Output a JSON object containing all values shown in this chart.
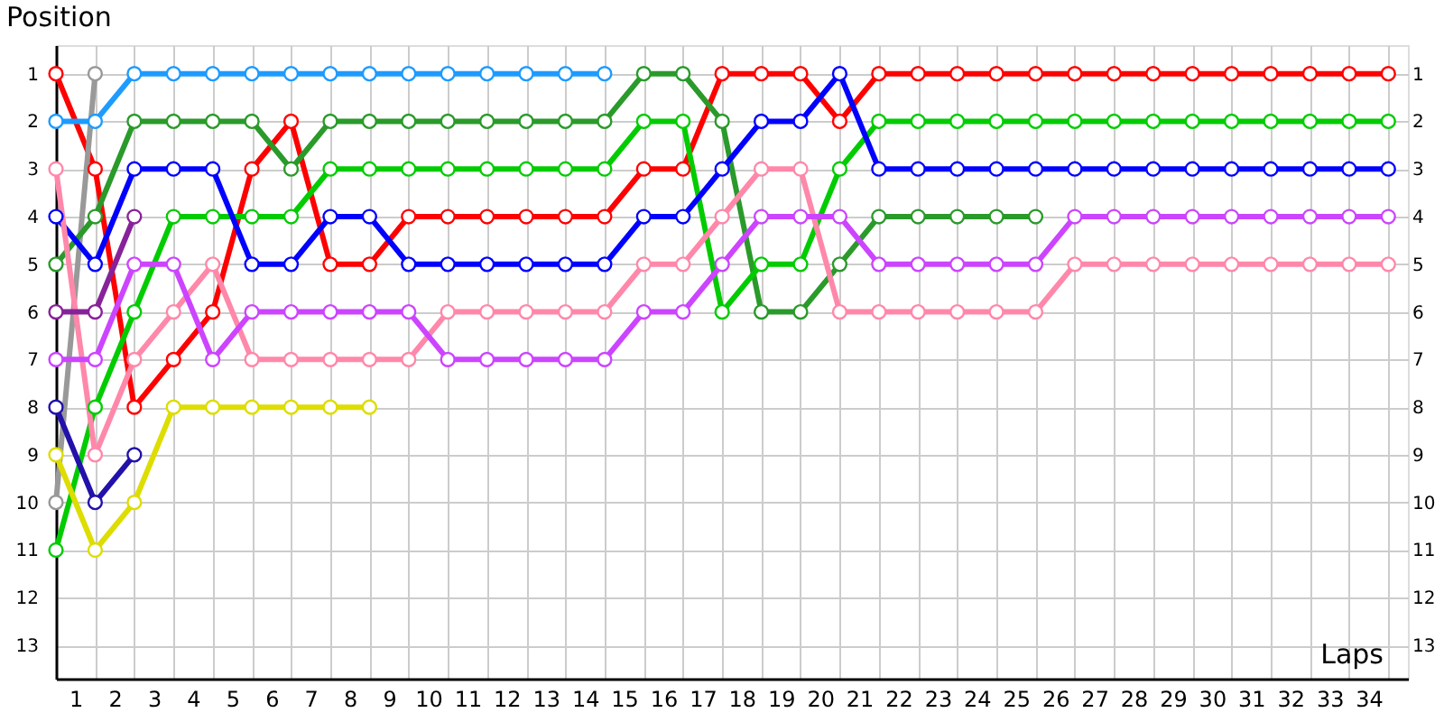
{
  "chart_data": {
    "type": "line",
    "xlabel": "Laps",
    "ylabel": "Position",
    "x": [
      0,
      1,
      2,
      3,
      4,
      5,
      6,
      7,
      8,
      9,
      10,
      11,
      12,
      13,
      14,
      15,
      16,
      17,
      18,
      19,
      20,
      21,
      22,
      23,
      24,
      25,
      26,
      27,
      28,
      29,
      30,
      31,
      32,
      33,
      34
    ],
    "xlim": [
      0,
      34.5
    ],
    "xticks": [
      {
        "value": 0,
        "label": null
      },
      {
        "value": 1,
        "label": null
      },
      {
        "value": 2,
        "label": null
      },
      {
        "value": 3,
        "label": null
      },
      {
        "value": 4,
        "label": null
      },
      {
        "value": 5,
        "label": null
      },
      {
        "value": 6,
        "label": null
      },
      {
        "value": 7,
        "label": null
      },
      {
        "value": 8,
        "label": null
      },
      {
        "value": 9,
        "label": null
      },
      {
        "value": 10,
        "label": null
      },
      {
        "value": 11,
        "label": null
      },
      {
        "value": 12,
        "label": null
      },
      {
        "value": 13,
        "label": null
      },
      {
        "value": 14,
        "label": null
      },
      {
        "value": 15,
        "label": null
      },
      {
        "value": 16,
        "label": null
      },
      {
        "value": 17,
        "label": null
      },
      {
        "value": 18,
        "label": null
      },
      {
        "value": 19,
        "label": null
      },
      {
        "value": 20,
        "label": null
      },
      {
        "value": 21,
        "label": null
      },
      {
        "value": 22,
        "label": null
      },
      {
        "value": 23,
        "label": null
      },
      {
        "value": 24,
        "label": null
      },
      {
        "value": 25,
        "label": null
      },
      {
        "value": 26,
        "label": null
      },
      {
        "value": 27,
        "label": null
      },
      {
        "value": 28,
        "label": null
      },
      {
        "value": 29,
        "label": null
      },
      {
        "value": 30,
        "label": null
      },
      {
        "value": 31,
        "label": null
      },
      {
        "value": 32,
        "label": null
      },
      {
        "value": 33,
        "label": null
      },
      {
        "value": 34,
        "label": null
      },
      {
        "value": 0.5,
        "label": "1"
      },
      {
        "value": 1.5,
        "label": "2"
      },
      {
        "value": 2.5,
        "label": "3"
      },
      {
        "value": 3.5,
        "label": "4"
      },
      {
        "value": 4.5,
        "label": "5"
      },
      {
        "value": 5.5,
        "label": "6"
      },
      {
        "value": 6.5,
        "label": "7"
      },
      {
        "value": 7.5,
        "label": "8"
      },
      {
        "value": 8.5,
        "label": "9"
      },
      {
        "value": 9.5,
        "label": "10"
      },
      {
        "value": 10.5,
        "label": "11"
      },
      {
        "value": 11.5,
        "label": "12"
      },
      {
        "value": 12.5,
        "label": "13"
      },
      {
        "value": 13.5,
        "label": "14"
      },
      {
        "value": 14.5,
        "label": "15"
      },
      {
        "value": 15.5,
        "label": "16"
      },
      {
        "value": 16.5,
        "label": "17"
      },
      {
        "value": 17.5,
        "label": "18"
      },
      {
        "value": 18.5,
        "label": "19"
      },
      {
        "value": 19.5,
        "label": "20"
      },
      {
        "value": 20.5,
        "label": "21"
      },
      {
        "value": 21.5,
        "label": "22"
      },
      {
        "value": 22.5,
        "label": "23"
      },
      {
        "value": 23.5,
        "label": "24"
      },
      {
        "value": 24.5,
        "label": "25"
      },
      {
        "value": 25.5,
        "label": "26"
      },
      {
        "value": 26.5,
        "label": "27"
      },
      {
        "value": 27.5,
        "label": "28"
      },
      {
        "value": 28.5,
        "label": "29"
      },
      {
        "value": 29.5,
        "label": "30"
      },
      {
        "value": 30.5,
        "label": "31"
      },
      {
        "value": 31.5,
        "label": "32"
      },
      {
        "value": 32.5,
        "label": "33"
      },
      {
        "value": 33.5,
        "label": "34"
      }
    ],
    "ylim": [
      13.7,
      0.4
    ],
    "yticks": [
      1,
      2,
      3,
      4,
      5,
      6,
      7,
      8,
      9,
      10,
      11,
      12,
      13
    ],
    "y2lim": [
      13.7,
      0.4
    ],
    "y2ticks": [
      1,
      2,
      3,
      4,
      5,
      6,
      7,
      8,
      9,
      10,
      11,
      12,
      13
    ],
    "grid": true,
    "legend": false,
    "marker": "circle",
    "line_style": "solid",
    "series": [
      {
        "color": "#ff0000",
        "values": [
          1,
          3,
          8,
          7,
          6,
          3,
          2,
          5,
          5,
          4,
          4,
          4,
          4,
          4,
          4,
          3,
          3,
          1,
          1,
          1,
          2,
          1,
          1,
          1,
          1,
          1,
          1,
          1,
          1,
          1,
          1,
          1,
          1,
          1,
          1
        ]
      },
      {
        "color": "#1e9bff",
        "values": [
          2,
          2,
          1,
          1,
          1,
          1,
          1,
          1,
          1,
          1,
          1,
          1,
          1,
          1,
          1,
          null,
          null,
          null,
          null,
          null,
          null,
          null,
          null,
          null,
          null,
          null,
          null,
          null,
          null,
          null,
          null,
          null,
          null,
          null,
          null
        ]
      },
      {
        "color": "#999999",
        "values": [
          10,
          1,
          null,
          null,
          null,
          null,
          null,
          null,
          null,
          null,
          null,
          null,
          null,
          null,
          null,
          null,
          null,
          null,
          null,
          null,
          null,
          null,
          null,
          null,
          null,
          null,
          null,
          null,
          null,
          null,
          null,
          null,
          null,
          null,
          null
        ]
      },
      {
        "color": "#2a9a2a",
        "values": [
          5,
          4,
          2,
          2,
          2,
          2,
          3,
          2,
          2,
          2,
          2,
          2,
          2,
          2,
          2,
          1,
          1,
          2,
          6,
          6,
          5,
          4,
          4,
          4,
          4,
          4,
          null,
          null,
          null,
          null,
          null,
          null,
          null,
          null,
          null
        ]
      },
      {
        "color": "#00cc00",
        "values": [
          11,
          8,
          6,
          4,
          4,
          4,
          4,
          3,
          3,
          3,
          3,
          3,
          3,
          3,
          3,
          2,
          2,
          6,
          5,
          5,
          3,
          2,
          2,
          2,
          2,
          2,
          2,
          2,
          2,
          2,
          2,
          2,
          2,
          2,
          2
        ]
      },
      {
        "color": "#0000ff",
        "values": [
          4,
          5,
          3,
          3,
          3,
          5,
          5,
          4,
          4,
          5,
          5,
          5,
          5,
          5,
          5,
          4,
          4,
          3,
          2,
          2,
          1,
          3,
          3,
          3,
          3,
          3,
          3,
          3,
          3,
          3,
          3,
          3,
          3,
          3,
          3
        ]
      },
      {
        "color": "#ff88aa",
        "values": [
          3,
          9,
          7,
          6,
          5,
          7,
          7,
          7,
          7,
          7,
          6,
          6,
          6,
          6,
          6,
          5,
          5,
          4,
          3,
          3,
          6,
          6,
          6,
          6,
          6,
          6,
          5,
          5,
          5,
          5,
          5,
          5,
          5,
          5,
          5
        ]
      },
      {
        "color": "#cc44ff",
        "values": [
          7,
          7,
          5,
          5,
          7,
          6,
          6,
          6,
          6,
          6,
          7,
          7,
          7,
          7,
          7,
          6,
          6,
          5,
          4,
          4,
          4,
          5,
          5,
          5,
          5,
          5,
          4,
          4,
          4,
          4,
          4,
          4,
          4,
          4,
          4
        ]
      },
      {
        "color": "#882299",
        "values": [
          6,
          6,
          4,
          null,
          null,
          null,
          null,
          null,
          null,
          null,
          null,
          null,
          null,
          null,
          null,
          null,
          null,
          null,
          null,
          null,
          null,
          null,
          null,
          null,
          null,
          null,
          null,
          null,
          null,
          null,
          null,
          null,
          null,
          null,
          null
        ]
      },
      {
        "color": "#2211aa",
        "values": [
          8,
          10,
          9,
          null,
          null,
          null,
          null,
          null,
          null,
          null,
          null,
          null,
          null,
          null,
          null,
          null,
          null,
          null,
          null,
          null,
          null,
          null,
          null,
          null,
          null,
          null,
          null,
          null,
          null,
          null,
          null,
          null,
          null,
          null,
          null
        ]
      },
      {
        "color": "#dddd00",
        "values": [
          9,
          11,
          10,
          8,
          8,
          8,
          8,
          8,
          8,
          null,
          null,
          null,
          null,
          null,
          null,
          null,
          null,
          null,
          null,
          null,
          null,
          null,
          null,
          null,
          null,
          null,
          null,
          null,
          null,
          null,
          null,
          null,
          null,
          null,
          null
        ]
      }
    ]
  }
}
